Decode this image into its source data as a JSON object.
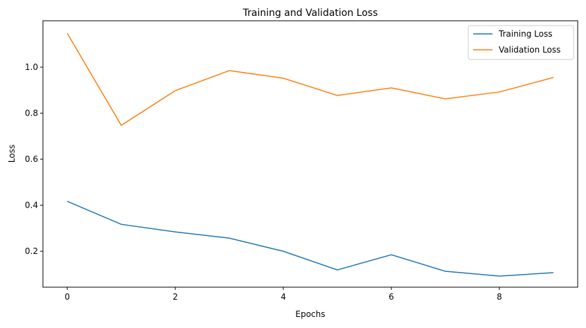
{
  "chart_data": {
    "type": "line",
    "title": "Training and Validation Loss",
    "xlabel": "Epochs",
    "ylabel": "Loss",
    "x": [
      0,
      1,
      2,
      3,
      4,
      5,
      6,
      7,
      8,
      9
    ],
    "xlim": [
      -0.45,
      9.45
    ],
    "ylim": [
      0.044,
      1.2015
    ],
    "xticks": [
      0,
      2,
      4,
      6,
      8
    ],
    "xtick_labels": [
      "0",
      "2",
      "4",
      "6",
      "8"
    ],
    "yticks": [
      0.2,
      0.4,
      0.6,
      0.8,
      1.0
    ],
    "ytick_labels": [
      "0.2",
      "0.4",
      "0.6",
      "0.8",
      "1.0"
    ],
    "grid": false,
    "legend_position": "top-right",
    "series": [
      {
        "name": "Training Loss",
        "color": "#1f77b4",
        "values": [
          0.417,
          0.317,
          0.284,
          0.257,
          0.2,
          0.119,
          0.185,
          0.113,
          0.092,
          0.107
        ]
      },
      {
        "name": "Validation Loss",
        "color": "#ff7f0e",
        "values": [
          1.147,
          0.747,
          0.898,
          0.985,
          0.952,
          0.877,
          0.91,
          0.862,
          0.892,
          0.955
        ]
      }
    ]
  }
}
